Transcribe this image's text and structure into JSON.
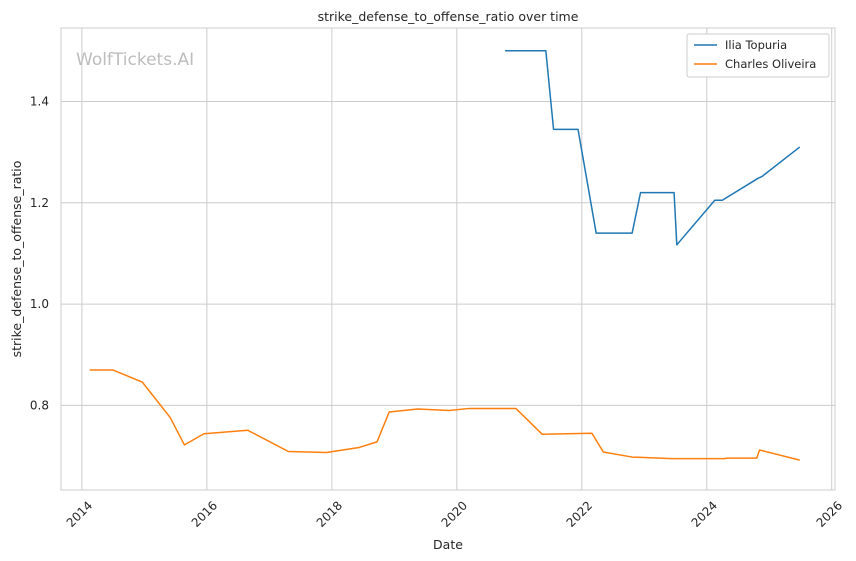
{
  "chart_data": {
    "type": "line",
    "title": "strike_defense_to_offense_ratio over time",
    "xlabel": "Date",
    "ylabel": "strike_defense_to_offense_ratio",
    "watermark": "WolfTickets.AI",
    "x_axis_type": "date",
    "xlim": [
      "2013-09-01",
      "2026-01-20"
    ],
    "ylim": [
      0.633,
      1.545
    ],
    "x_ticks": [
      "2014",
      "2016",
      "2018",
      "2020",
      "2022",
      "2024",
      "2026"
    ],
    "y_ticks": [
      "0.8",
      "1.0",
      "1.2",
      "1.4"
    ],
    "grid": true,
    "legend_position": "top-right",
    "series": [
      {
        "name": "Ilia Topuria",
        "color": "#1f77b4",
        "points": [
          [
            "2020-10-10",
            1.5
          ],
          [
            "2021-06-05",
            1.5
          ],
          [
            "2021-07-20",
            1.345
          ],
          [
            "2021-12-10",
            1.345
          ],
          [
            "2022-03-26",
            1.14
          ],
          [
            "2022-10-22",
            1.14
          ],
          [
            "2022-12-10",
            1.22
          ],
          [
            "2023-06-24",
            1.22
          ],
          [
            "2023-07-10",
            1.117
          ],
          [
            "2024-02-17",
            1.205
          ],
          [
            "2024-04-01",
            1.205
          ],
          [
            "2024-10-26",
            1.248
          ],
          [
            "2024-11-20",
            1.252
          ],
          [
            "2025-06-28",
            1.31
          ]
        ]
      },
      {
        "name": "Charles Oliveira",
        "color": "#ff7f0e",
        "points": [
          [
            "2014-02-15",
            0.87
          ],
          [
            "2014-07-01",
            0.87
          ],
          [
            "2014-12-20",
            0.846
          ],
          [
            "2015-06-01",
            0.776
          ],
          [
            "2015-08-23",
            0.722
          ],
          [
            "2015-12-15",
            0.744
          ],
          [
            "2016-08-27",
            0.751
          ],
          [
            "2017-04-22",
            0.709
          ],
          [
            "2017-12-01",
            0.707
          ],
          [
            "2018-06-09",
            0.717
          ],
          [
            "2018-09-22",
            0.728
          ],
          [
            "2018-12-02",
            0.787
          ],
          [
            "2019-05-18",
            0.793
          ],
          [
            "2019-11-16",
            0.79
          ],
          [
            "2020-03-14",
            0.794
          ],
          [
            "2020-12-12",
            0.794
          ],
          [
            "2021-05-15",
            0.743
          ],
          [
            "2022-03-01",
            0.745
          ],
          [
            "2022-05-07",
            0.708
          ],
          [
            "2022-10-22",
            0.698
          ],
          [
            "2023-06-10",
            0.695
          ],
          [
            "2024-04-13",
            0.695
          ],
          [
            "2024-05-01",
            0.696
          ],
          [
            "2024-10-20",
            0.696
          ],
          [
            "2024-11-05",
            0.712
          ],
          [
            "2025-06-28",
            0.692
          ]
        ]
      }
    ]
  }
}
